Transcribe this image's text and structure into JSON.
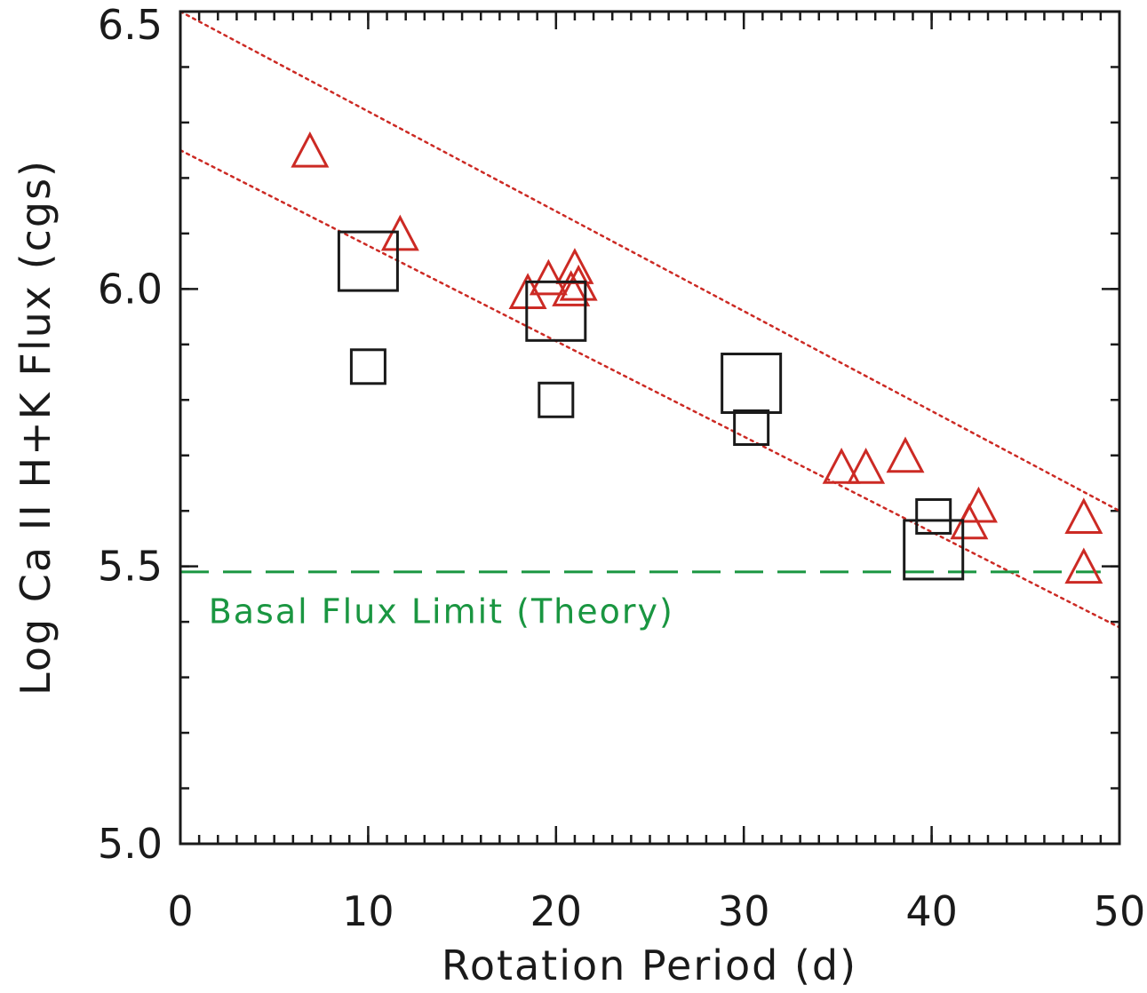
{
  "chart_data": {
    "type": "scatter",
    "xlabel": "Rotation Period (d)",
    "ylabel": "Log Ca II H+K Flux (cgs)",
    "xlim": [
      0,
      50
    ],
    "ylim": [
      5.0,
      6.5
    ],
    "xticks": [
      0,
      10,
      20,
      30,
      40,
      50
    ],
    "xtick_labels": [
      "0",
      "10",
      "20",
      "30",
      "40",
      "50"
    ],
    "yticks": [
      5.0,
      5.5,
      6.0,
      6.5
    ],
    "ytick_labels": [
      "5.0",
      "5.5",
      "6.0",
      "6.5"
    ],
    "x_minor_step": 1,
    "y_minor_step": 0.1,
    "grid": false,
    "series": [
      {
        "marker": "triangle",
        "color": "#cc2a24",
        "points": [
          {
            "x": 6.9,
            "y": 6.25
          },
          {
            "x": 11.7,
            "y": 6.1
          },
          {
            "x": 18.5,
            "y": 5.995
          },
          {
            "x": 19.6,
            "y": 6.02
          },
          {
            "x": 20.8,
            "y": 6.0
          },
          {
            "x": 21.0,
            "y": 6.04
          },
          {
            "x": 21.2,
            "y": 6.01
          },
          {
            "x": 35.2,
            "y": 5.68
          },
          {
            "x": 36.5,
            "y": 5.68
          },
          {
            "x": 38.6,
            "y": 5.7
          },
          {
            "x": 42.0,
            "y": 5.58
          },
          {
            "x": 42.5,
            "y": 5.61
          },
          {
            "x": 48.1,
            "y": 5.59
          },
          {
            "x": 48.1,
            "y": 5.5
          }
        ]
      },
      {
        "marker": "square",
        "color": "#1a1a1a",
        "points": [
          {
            "x": 10.0,
            "y": 6.05,
            "size": "large"
          },
          {
            "x": 10.0,
            "y": 5.86,
            "size": "small"
          },
          {
            "x": 20.0,
            "y": 5.96,
            "size": "large"
          },
          {
            "x": 20.0,
            "y": 5.8,
            "size": "small"
          },
          {
            "x": 30.4,
            "y": 5.83,
            "size": "large"
          },
          {
            "x": 30.4,
            "y": 5.75,
            "size": "small"
          },
          {
            "x": 40.1,
            "y": 5.59,
            "size": "small"
          },
          {
            "x": 40.1,
            "y": 5.53,
            "size": "large"
          }
        ]
      }
    ],
    "fit_lines": [
      {
        "style": "dotted",
        "color": "#cc2a24",
        "x": [
          0,
          50
        ],
        "y": [
          6.5,
          5.6
        ]
      },
      {
        "style": "dotted",
        "color": "#cc2a24",
        "x": [
          0,
          50
        ],
        "y": [
          6.25,
          5.39
        ]
      }
    ],
    "reference_line": {
      "style": "dashed",
      "color": "#1a9641",
      "y": 5.49,
      "x": [
        0,
        49
      ]
    },
    "annotation": {
      "text": "Basal Flux Limit  (Theory)",
      "color": "#1a9641",
      "x": 1.5,
      "y": 5.42
    }
  }
}
